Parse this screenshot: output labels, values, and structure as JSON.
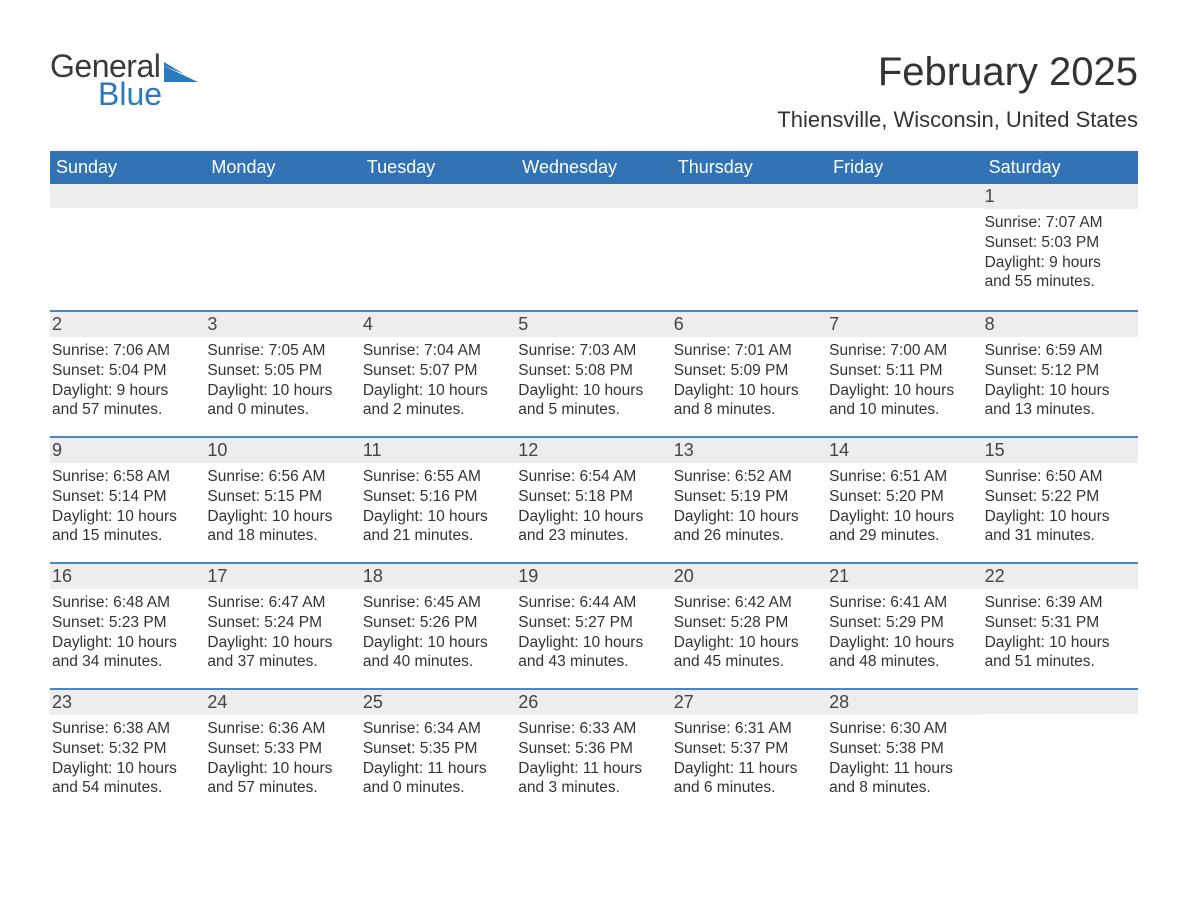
{
  "logo": {
    "word1": "General",
    "word2": "Blue",
    "flag_color": "#2a7ac0",
    "word1_color": "#3a3a3a",
    "word2_color": "#2a7ac0"
  },
  "title": "February 2025",
  "location": "Thiensville, Wisconsin, United States",
  "colors": {
    "header_bg": "#3173b5",
    "header_text": "#ffffff",
    "week_border": "#4a86c0",
    "daynum_bg": "#ededed",
    "text": "#333333",
    "page_bg": "#ffffff"
  },
  "weekdays": [
    "Sunday",
    "Monday",
    "Tuesday",
    "Wednesday",
    "Thursday",
    "Friday",
    "Saturday"
  ],
  "weeks": [
    [
      {
        "day": "",
        "sunrise": "",
        "sunset": "",
        "daylight1": "",
        "daylight2": ""
      },
      {
        "day": "",
        "sunrise": "",
        "sunset": "",
        "daylight1": "",
        "daylight2": ""
      },
      {
        "day": "",
        "sunrise": "",
        "sunset": "",
        "daylight1": "",
        "daylight2": ""
      },
      {
        "day": "",
        "sunrise": "",
        "sunset": "",
        "daylight1": "",
        "daylight2": ""
      },
      {
        "day": "",
        "sunrise": "",
        "sunset": "",
        "daylight1": "",
        "daylight2": ""
      },
      {
        "day": "",
        "sunrise": "",
        "sunset": "",
        "daylight1": "",
        "daylight2": ""
      },
      {
        "day": "1",
        "sunrise": "Sunrise: 7:07 AM",
        "sunset": "Sunset: 5:03 PM",
        "daylight1": "Daylight: 9 hours",
        "daylight2": "and 55 minutes."
      }
    ],
    [
      {
        "day": "2",
        "sunrise": "Sunrise: 7:06 AM",
        "sunset": "Sunset: 5:04 PM",
        "daylight1": "Daylight: 9 hours",
        "daylight2": "and 57 minutes."
      },
      {
        "day": "3",
        "sunrise": "Sunrise: 7:05 AM",
        "sunset": "Sunset: 5:05 PM",
        "daylight1": "Daylight: 10 hours",
        "daylight2": "and 0 minutes."
      },
      {
        "day": "4",
        "sunrise": "Sunrise: 7:04 AM",
        "sunset": "Sunset: 5:07 PM",
        "daylight1": "Daylight: 10 hours",
        "daylight2": "and 2 minutes."
      },
      {
        "day": "5",
        "sunrise": "Sunrise: 7:03 AM",
        "sunset": "Sunset: 5:08 PM",
        "daylight1": "Daylight: 10 hours",
        "daylight2": "and 5 minutes."
      },
      {
        "day": "6",
        "sunrise": "Sunrise: 7:01 AM",
        "sunset": "Sunset: 5:09 PM",
        "daylight1": "Daylight: 10 hours",
        "daylight2": "and 8 minutes."
      },
      {
        "day": "7",
        "sunrise": "Sunrise: 7:00 AM",
        "sunset": "Sunset: 5:11 PM",
        "daylight1": "Daylight: 10 hours",
        "daylight2": "and 10 minutes."
      },
      {
        "day": "8",
        "sunrise": "Sunrise: 6:59 AM",
        "sunset": "Sunset: 5:12 PM",
        "daylight1": "Daylight: 10 hours",
        "daylight2": "and 13 minutes."
      }
    ],
    [
      {
        "day": "9",
        "sunrise": "Sunrise: 6:58 AM",
        "sunset": "Sunset: 5:14 PM",
        "daylight1": "Daylight: 10 hours",
        "daylight2": "and 15 minutes."
      },
      {
        "day": "10",
        "sunrise": "Sunrise: 6:56 AM",
        "sunset": "Sunset: 5:15 PM",
        "daylight1": "Daylight: 10 hours",
        "daylight2": "and 18 minutes."
      },
      {
        "day": "11",
        "sunrise": "Sunrise: 6:55 AM",
        "sunset": "Sunset: 5:16 PM",
        "daylight1": "Daylight: 10 hours",
        "daylight2": "and 21 minutes."
      },
      {
        "day": "12",
        "sunrise": "Sunrise: 6:54 AM",
        "sunset": "Sunset: 5:18 PM",
        "daylight1": "Daylight: 10 hours",
        "daylight2": "and 23 minutes."
      },
      {
        "day": "13",
        "sunrise": "Sunrise: 6:52 AM",
        "sunset": "Sunset: 5:19 PM",
        "daylight1": "Daylight: 10 hours",
        "daylight2": "and 26 minutes."
      },
      {
        "day": "14",
        "sunrise": "Sunrise: 6:51 AM",
        "sunset": "Sunset: 5:20 PM",
        "daylight1": "Daylight: 10 hours",
        "daylight2": "and 29 minutes."
      },
      {
        "day": "15",
        "sunrise": "Sunrise: 6:50 AM",
        "sunset": "Sunset: 5:22 PM",
        "daylight1": "Daylight: 10 hours",
        "daylight2": "and 31 minutes."
      }
    ],
    [
      {
        "day": "16",
        "sunrise": "Sunrise: 6:48 AM",
        "sunset": "Sunset: 5:23 PM",
        "daylight1": "Daylight: 10 hours",
        "daylight2": "and 34 minutes."
      },
      {
        "day": "17",
        "sunrise": "Sunrise: 6:47 AM",
        "sunset": "Sunset: 5:24 PM",
        "daylight1": "Daylight: 10 hours",
        "daylight2": "and 37 minutes."
      },
      {
        "day": "18",
        "sunrise": "Sunrise: 6:45 AM",
        "sunset": "Sunset: 5:26 PM",
        "daylight1": "Daylight: 10 hours",
        "daylight2": "and 40 minutes."
      },
      {
        "day": "19",
        "sunrise": "Sunrise: 6:44 AM",
        "sunset": "Sunset: 5:27 PM",
        "daylight1": "Daylight: 10 hours",
        "daylight2": "and 43 minutes."
      },
      {
        "day": "20",
        "sunrise": "Sunrise: 6:42 AM",
        "sunset": "Sunset: 5:28 PM",
        "daylight1": "Daylight: 10 hours",
        "daylight2": "and 45 minutes."
      },
      {
        "day": "21",
        "sunrise": "Sunrise: 6:41 AM",
        "sunset": "Sunset: 5:29 PM",
        "daylight1": "Daylight: 10 hours",
        "daylight2": "and 48 minutes."
      },
      {
        "day": "22",
        "sunrise": "Sunrise: 6:39 AM",
        "sunset": "Sunset: 5:31 PM",
        "daylight1": "Daylight: 10 hours",
        "daylight2": "and 51 minutes."
      }
    ],
    [
      {
        "day": "23",
        "sunrise": "Sunrise: 6:38 AM",
        "sunset": "Sunset: 5:32 PM",
        "daylight1": "Daylight: 10 hours",
        "daylight2": "and 54 minutes."
      },
      {
        "day": "24",
        "sunrise": "Sunrise: 6:36 AM",
        "sunset": "Sunset: 5:33 PM",
        "daylight1": "Daylight: 10 hours",
        "daylight2": "and 57 minutes."
      },
      {
        "day": "25",
        "sunrise": "Sunrise: 6:34 AM",
        "sunset": "Sunset: 5:35 PM",
        "daylight1": "Daylight: 11 hours",
        "daylight2": "and 0 minutes."
      },
      {
        "day": "26",
        "sunrise": "Sunrise: 6:33 AM",
        "sunset": "Sunset: 5:36 PM",
        "daylight1": "Daylight: 11 hours",
        "daylight2": "and 3 minutes."
      },
      {
        "day": "27",
        "sunrise": "Sunrise: 6:31 AM",
        "sunset": "Sunset: 5:37 PM",
        "daylight1": "Daylight: 11 hours",
        "daylight2": "and 6 minutes."
      },
      {
        "day": "28",
        "sunrise": "Sunrise: 6:30 AM",
        "sunset": "Sunset: 5:38 PM",
        "daylight1": "Daylight: 11 hours",
        "daylight2": "and 8 minutes."
      },
      {
        "day": "",
        "sunrise": "",
        "sunset": "",
        "daylight1": "",
        "daylight2": ""
      }
    ]
  ]
}
